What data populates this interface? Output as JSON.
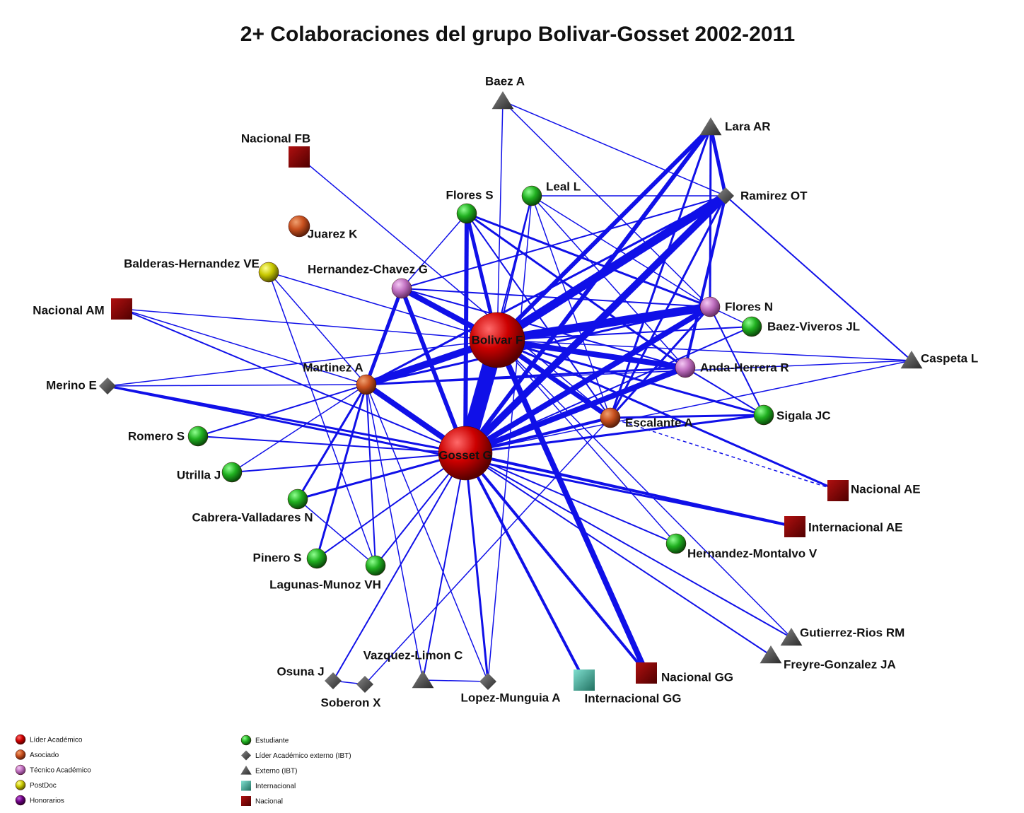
{
  "title": "2+ Colaboraciones del grupo  Bolivar-Gosset 2002-2011",
  "nodes": [
    {
      "label": "Bolivar F"
    },
    {
      "label": "Gosset G"
    },
    {
      "label": "Baez A"
    },
    {
      "label": "Lara AR"
    },
    {
      "label": "Ramirez OT"
    },
    {
      "label": "Nacional FB"
    },
    {
      "label": "Juarez K"
    },
    {
      "label": "Flores S"
    },
    {
      "label": "Leal L"
    },
    {
      "label": "Balderas-Hernandez VE"
    },
    {
      "label": "Hernandez-Chavez G"
    },
    {
      "label": "Nacional AM"
    },
    {
      "label": "Flores N"
    },
    {
      "label": "Baez-Viveros JL"
    },
    {
      "label": "Caspeta L"
    },
    {
      "label": "Anda-Herrera R"
    },
    {
      "label": "Martinez A"
    },
    {
      "label": "Merino E"
    },
    {
      "label": "Escalante A"
    },
    {
      "label": "Sigala JC"
    },
    {
      "label": "Romero S"
    },
    {
      "label": "Utrilla J"
    },
    {
      "label": "Nacional AE"
    },
    {
      "label": "Cabrera-Valladares N"
    },
    {
      "label": "Internacional AE"
    },
    {
      "label": "Hernandez-Montalvo V"
    },
    {
      "label": "Pinero S"
    },
    {
      "label": "Lagunas-Munoz VH"
    },
    {
      "label": "Gutierrez-Rios RM"
    },
    {
      "label": "Freyre-Gonzalez JA"
    },
    {
      "label": "Vazquez-Limon C"
    },
    {
      "label": "Osuna J"
    },
    {
      "label": "Soberon X"
    },
    {
      "label": "Lopez-Munguia A"
    },
    {
      "label": "Internacional GG"
    },
    {
      "label": "Nacional GG"
    }
  ],
  "legend": [
    {
      "label": "Líder Académico"
    },
    {
      "label": "Asociado"
    },
    {
      "label": "Técnico Académico"
    },
    {
      "label": "PostDoc"
    },
    {
      "label": "Honorarios"
    },
    {
      "label": "Estudiante"
    },
    {
      "label": "Líder Académico externo (IBT)"
    },
    {
      "label": "Externo (IBT)"
    },
    {
      "label": "Internacional"
    },
    {
      "label": "Nacional"
    }
  ]
}
